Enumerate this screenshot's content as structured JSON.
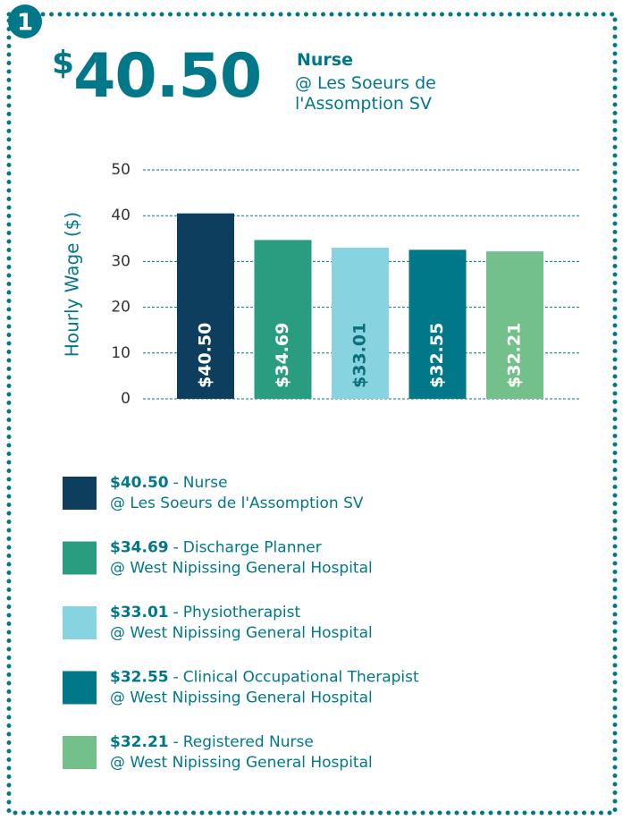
{
  "badge": "1",
  "chart_data": {
    "type": "bar",
    "y_label": "Hourly Wage ($)",
    "categories": [
      "Nurse",
      "Discharge Planner",
      "Physiotherapist",
      "Clinical Occupational Therapist",
      "Registered Nurse"
    ],
    "locations": [
      "@ Les Soeurs de l'Assomption SV",
      "@ West Nipissing General Hospital",
      "@ West Nipissing General Hospital",
      "@ West Nipissing General Hospital",
      "@ West Nipissing General Hospital"
    ],
    "values": [
      40.5,
      34.69,
      33.01,
      32.55,
      32.21
    ],
    "value_labels": [
      "$40.50",
      "$34.69",
      "$33.01",
      "$32.55",
      "$32.21"
    ],
    "colors": [
      "#0d3e5e",
      "#2a9d80",
      "#88d3e0",
      "#00788a",
      "#74c08b"
    ],
    "legend_separator": "-",
    "ylim": [
      0,
      50
    ],
    "yticks": [
      0,
      10,
      20,
      30,
      40,
      50
    ],
    "grid": true
  }
}
